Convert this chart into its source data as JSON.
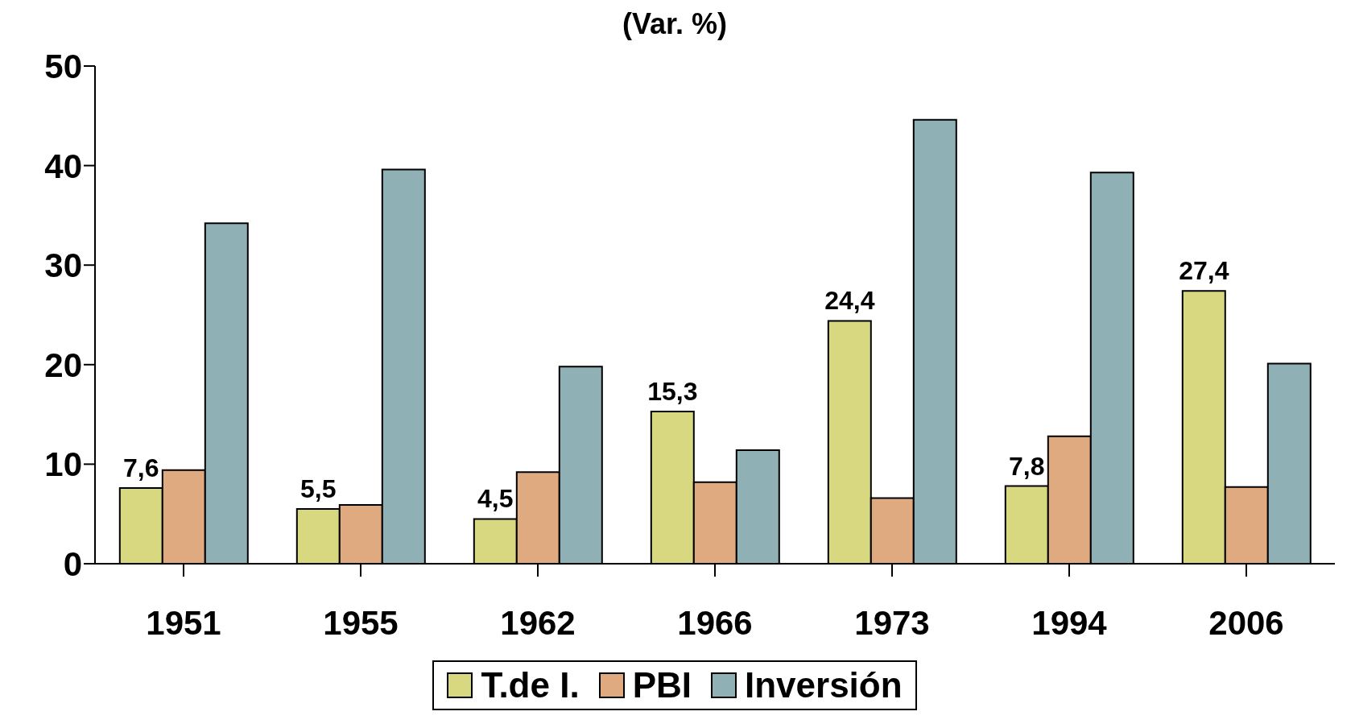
{
  "chart_data": {
    "type": "bar",
    "title": "(Var. %)",
    "categories": [
      "1951",
      "1955",
      "1962",
      "1966",
      "1973",
      "1994",
      "2006"
    ],
    "series": [
      {
        "name": "T.de I.",
        "color": "#d8d880",
        "values": [
          7.6,
          5.5,
          4.5,
          15.3,
          24.4,
          7.8,
          27.4
        ],
        "value_labels": [
          "7,6",
          "5,5",
          "4,5",
          "15,3",
          "24,4",
          "7,8",
          "27,4"
        ]
      },
      {
        "name": "PBI",
        "color": "#e0aa80",
        "values": [
          9.4,
          5.9,
          9.2,
          8.2,
          6.6,
          12.8,
          7.7
        ]
      },
      {
        "name": "Inversión",
        "color": "#8fb0b4",
        "values": [
          34.2,
          39.6,
          19.8,
          11.4,
          44.6,
          39.3,
          20.1
        ]
      }
    ],
    "ylim": [
      0,
      50
    ],
    "yticks": [
      0,
      10,
      20,
      30,
      40,
      50
    ],
    "grid": false,
    "legend": "bottom"
  }
}
